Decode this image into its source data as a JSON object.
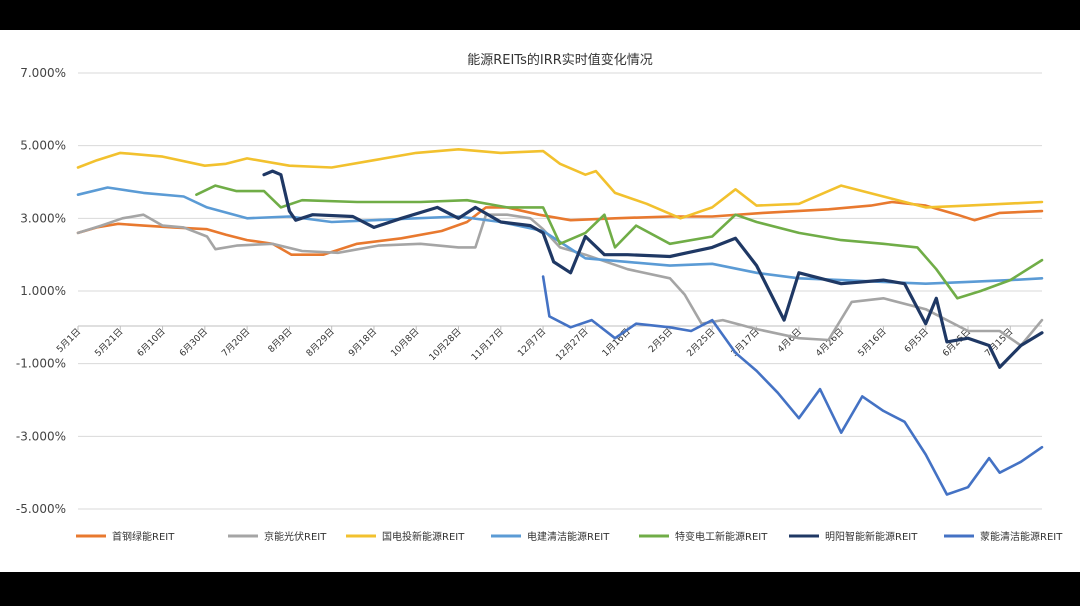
{
  "chart_data": {
    "type": "line",
    "title": "能源REITs的IRR实时值变化情况",
    "ylim": [
      -5.0,
      7.0
    ],
    "yticks": [
      {
        "value": 7,
        "label": "7.000%"
      },
      {
        "value": 5,
        "label": "5.000%"
      },
      {
        "value": 3,
        "label": "3.000%"
      },
      {
        "value": 1,
        "label": "1.000%"
      },
      {
        "value": -1,
        "label": "-1.000%"
      },
      {
        "value": -3,
        "label": "-3.000%"
      },
      {
        "value": -5,
        "label": "-5.000%"
      }
    ],
    "xlim": [
      "2023-05-01",
      "2024-07-30"
    ],
    "xtick_labels": [
      {
        "date": "2023-05-01",
        "label": "5月1日"
      },
      {
        "date": "2023-05-21",
        "label": "5月21日"
      },
      {
        "date": "2023-06-10",
        "label": "6月10日"
      },
      {
        "date": "2023-06-30",
        "label": "6月30日"
      },
      {
        "date": "2023-07-20",
        "label": "7月20日"
      },
      {
        "date": "2023-08-09",
        "label": "8月9日"
      },
      {
        "date": "2023-08-29",
        "label": "8月29日"
      },
      {
        "date": "2023-09-18",
        "label": "9月18日"
      },
      {
        "date": "2023-10-08",
        "label": "10月8日"
      },
      {
        "date": "2023-10-28",
        "label": "10月28日"
      },
      {
        "date": "2023-11-17",
        "label": "11月17日"
      },
      {
        "date": "2023-12-07",
        "label": "12月7日"
      },
      {
        "date": "2023-12-27",
        "label": "12月27日"
      },
      {
        "date": "2024-01-16",
        "label": "1月16日"
      },
      {
        "date": "2024-02-05",
        "label": "2月5日"
      },
      {
        "date": "2024-02-25",
        "label": "2月25日"
      },
      {
        "date": "2024-03-17",
        "label": "3月17日"
      },
      {
        "date": "2024-04-06",
        "label": "4月6日"
      },
      {
        "date": "2024-04-26",
        "label": "4月26日"
      },
      {
        "date": "2024-05-16",
        "label": "5月16日"
      },
      {
        "date": "2024-06-05",
        "label": "6月5日"
      },
      {
        "date": "2024-06-25",
        "label": "6月25日"
      },
      {
        "date": "2024-07-15",
        "label": "7月15日"
      }
    ],
    "grid": true,
    "legend_position": "bottom",
    "series": [
      {
        "name": "首钢绿能REIT",
        "color": "#E8792F",
        "points": [
          [
            "2023-05-01",
            2.6
          ],
          [
            "2023-05-10",
            2.75
          ],
          [
            "2023-05-20",
            2.85
          ],
          [
            "2023-06-01",
            2.8
          ],
          [
            "2023-06-15",
            2.75
          ],
          [
            "2023-07-01",
            2.7
          ],
          [
            "2023-07-10",
            2.55
          ],
          [
            "2023-07-20",
            2.4
          ],
          [
            "2023-08-01",
            2.3
          ],
          [
            "2023-08-10",
            2.0
          ],
          [
            "2023-08-25",
            2.0
          ],
          [
            "2023-09-10",
            2.3
          ],
          [
            "2023-10-01",
            2.45
          ],
          [
            "2023-10-20",
            2.65
          ],
          [
            "2023-11-01",
            2.9
          ],
          [
            "2023-11-10",
            3.3
          ],
          [
            "2023-11-20",
            3.3
          ],
          [
            "2023-12-05",
            3.1
          ],
          [
            "2023-12-20",
            2.95
          ],
          [
            "2024-01-10",
            3.0
          ],
          [
            "2024-02-05",
            3.05
          ],
          [
            "2024-02-25",
            3.05
          ],
          [
            "2024-03-20",
            3.15
          ],
          [
            "2024-04-20",
            3.25
          ],
          [
            "2024-05-10",
            3.35
          ],
          [
            "2024-05-20",
            3.45
          ],
          [
            "2024-06-05",
            3.35
          ],
          [
            "2024-06-20",
            3.1
          ],
          [
            "2024-06-28",
            2.95
          ],
          [
            "2024-07-10",
            3.15
          ],
          [
            "2024-07-30",
            3.2
          ]
        ]
      },
      {
        "name": "京能光伏REIT",
        "color": "#A5A5A5",
        "points": [
          [
            "2023-05-01",
            2.6
          ],
          [
            "2023-05-12",
            2.8
          ],
          [
            "2023-05-22",
            3.0
          ],
          [
            "2023-06-01",
            3.1
          ],
          [
            "2023-06-10",
            2.8
          ],
          [
            "2023-06-20",
            2.75
          ],
          [
            "2023-07-01",
            2.5
          ],
          [
            "2023-07-05",
            2.15
          ],
          [
            "2023-07-15",
            2.25
          ],
          [
            "2023-08-01",
            2.3
          ],
          [
            "2023-08-15",
            2.1
          ],
          [
            "2023-09-01",
            2.05
          ],
          [
            "2023-09-20",
            2.25
          ],
          [
            "2023-10-10",
            2.3
          ],
          [
            "2023-10-28",
            2.2
          ],
          [
            "2023-11-05",
            2.2
          ],
          [
            "2023-11-10",
            3.1
          ],
          [
            "2023-11-20",
            3.1
          ],
          [
            "2023-12-01",
            3.0
          ],
          [
            "2023-12-07",
            2.7
          ],
          [
            "2023-12-15",
            2.2
          ],
          [
            "2023-12-27",
            2.0
          ],
          [
            "2024-01-16",
            1.6
          ],
          [
            "2024-02-05",
            1.35
          ],
          [
            "2024-02-12",
            0.9
          ],
          [
            "2024-02-20",
            0.1
          ],
          [
            "2024-03-01",
            0.2
          ],
          [
            "2024-03-17",
            -0.05
          ],
          [
            "2024-04-06",
            -0.3
          ],
          [
            "2024-04-20",
            -0.35
          ],
          [
            "2024-05-01",
            0.7
          ],
          [
            "2024-05-16",
            0.8
          ],
          [
            "2024-06-05",
            0.5
          ],
          [
            "2024-06-25",
            -0.1
          ],
          [
            "2024-07-10",
            -0.1
          ],
          [
            "2024-07-20",
            -0.5
          ],
          [
            "2024-07-30",
            0.2
          ]
        ]
      },
      {
        "name": "国电投新能源REIT",
        "color": "#F2C12E",
        "points": [
          [
            "2023-05-01",
            4.4
          ],
          [
            "2023-05-10",
            4.6
          ],
          [
            "2023-05-21",
            4.8
          ],
          [
            "2023-06-10",
            4.7
          ],
          [
            "2023-06-30",
            4.45
          ],
          [
            "2023-07-10",
            4.5
          ],
          [
            "2023-07-20",
            4.65
          ],
          [
            "2023-08-09",
            4.45
          ],
          [
            "2023-08-29",
            4.4
          ],
          [
            "2023-09-18",
            4.6
          ],
          [
            "2023-10-08",
            4.8
          ],
          [
            "2023-10-28",
            4.9
          ],
          [
            "2023-11-17",
            4.8
          ],
          [
            "2023-12-07",
            4.85
          ],
          [
            "2023-12-15",
            4.5
          ],
          [
            "2023-12-27",
            4.2
          ],
          [
            "2024-01-01",
            4.3
          ],
          [
            "2024-01-10",
            3.7
          ],
          [
            "2024-01-25",
            3.4
          ],
          [
            "2024-02-10",
            3.0
          ],
          [
            "2024-02-25",
            3.3
          ],
          [
            "2024-03-07",
            3.8
          ],
          [
            "2024-03-17",
            3.35
          ],
          [
            "2024-04-06",
            3.4
          ],
          [
            "2024-04-26",
            3.9
          ],
          [
            "2024-05-16",
            3.6
          ],
          [
            "2024-06-05",
            3.3
          ],
          [
            "2024-06-25",
            3.35
          ],
          [
            "2024-07-30",
            3.45
          ]
        ]
      },
      {
        "name": "电建清洁能源REIT",
        "color": "#5B9BD5",
        "points": [
          [
            "2023-05-01",
            3.65
          ],
          [
            "2023-05-15",
            3.85
          ],
          [
            "2023-06-01",
            3.7
          ],
          [
            "2023-06-20",
            3.6
          ],
          [
            "2023-07-01",
            3.3
          ],
          [
            "2023-07-20",
            3.0
          ],
          [
            "2023-08-09",
            3.05
          ],
          [
            "2023-08-29",
            2.9
          ],
          [
            "2023-09-18",
            2.95
          ],
          [
            "2023-10-08",
            3.0
          ],
          [
            "2023-10-28",
            3.05
          ],
          [
            "2023-11-17",
            2.9
          ],
          [
            "2023-12-07",
            2.65
          ],
          [
            "2023-12-27",
            1.9
          ],
          [
            "2024-01-16",
            1.8
          ],
          [
            "2024-02-05",
            1.7
          ],
          [
            "2024-02-25",
            1.75
          ],
          [
            "2024-03-17",
            1.5
          ],
          [
            "2024-04-06",
            1.35
          ],
          [
            "2024-04-26",
            1.3
          ],
          [
            "2024-05-16",
            1.25
          ],
          [
            "2024-06-05",
            1.2
          ],
          [
            "2024-06-25",
            1.25
          ],
          [
            "2024-07-15",
            1.3
          ],
          [
            "2024-07-30",
            1.35
          ]
        ]
      },
      {
        "name": "特变电工新能源REIT",
        "color": "#70AD47",
        "points": [
          [
            "2023-06-26",
            3.65
          ],
          [
            "2023-07-05",
            3.9
          ],
          [
            "2023-07-15",
            3.75
          ],
          [
            "2023-07-28",
            3.75
          ],
          [
            "2023-08-05",
            3.3
          ],
          [
            "2023-08-15",
            3.5
          ],
          [
            "2023-09-10",
            3.45
          ],
          [
            "2023-10-10",
            3.45
          ],
          [
            "2023-11-01",
            3.5
          ],
          [
            "2023-11-20",
            3.3
          ],
          [
            "2023-12-07",
            3.3
          ],
          [
            "2023-12-15",
            2.3
          ],
          [
            "2023-12-27",
            2.6
          ],
          [
            "2024-01-05",
            3.1
          ],
          [
            "2024-01-10",
            2.2
          ],
          [
            "2024-01-20",
            2.8
          ],
          [
            "2024-02-05",
            2.3
          ],
          [
            "2024-02-25",
            2.5
          ],
          [
            "2024-03-07",
            3.1
          ],
          [
            "2024-03-17",
            2.9
          ],
          [
            "2024-04-06",
            2.6
          ],
          [
            "2024-04-26",
            2.4
          ],
          [
            "2024-05-16",
            2.3
          ],
          [
            "2024-06-01",
            2.2
          ],
          [
            "2024-06-10",
            1.6
          ],
          [
            "2024-06-20",
            0.8
          ],
          [
            "2024-07-01",
            1.0
          ],
          [
            "2024-07-15",
            1.3
          ],
          [
            "2024-07-30",
            1.85
          ]
        ]
      },
      {
        "name": "明阳智能新能源REIT",
        "color": "#1F3864",
        "points": [
          [
            "2023-07-28",
            4.2
          ],
          [
            "2023-08-01",
            4.3
          ],
          [
            "2023-08-05",
            4.2
          ],
          [
            "2023-08-09",
            3.2
          ],
          [
            "2023-08-12",
            2.95
          ],
          [
            "2023-08-20",
            3.1
          ],
          [
            "2023-09-08",
            3.05
          ],
          [
            "2023-09-18",
            2.75
          ],
          [
            "2023-10-01",
            3.0
          ],
          [
            "2023-10-18",
            3.3
          ],
          [
            "2023-10-28",
            3.0
          ],
          [
            "2023-11-05",
            3.3
          ],
          [
            "2023-11-17",
            2.9
          ],
          [
            "2023-12-01",
            2.8
          ],
          [
            "2023-12-07",
            2.6
          ],
          [
            "2023-12-12",
            1.8
          ],
          [
            "2023-12-20",
            1.5
          ],
          [
            "2023-12-27",
            2.5
          ],
          [
            "2024-01-05",
            2.0
          ],
          [
            "2024-01-16",
            2.0
          ],
          [
            "2024-02-05",
            1.95
          ],
          [
            "2024-02-25",
            2.2
          ],
          [
            "2024-03-07",
            2.45
          ],
          [
            "2024-03-17",
            1.7
          ],
          [
            "2024-03-30",
            0.2
          ],
          [
            "2024-04-06",
            1.5
          ],
          [
            "2024-04-26",
            1.2
          ],
          [
            "2024-05-16",
            1.3
          ],
          [
            "2024-05-26",
            1.2
          ],
          [
            "2024-06-05",
            0.1
          ],
          [
            "2024-06-10",
            0.8
          ],
          [
            "2024-06-15",
            -0.4
          ],
          [
            "2024-06-25",
            -0.3
          ],
          [
            "2024-07-05",
            -0.5
          ],
          [
            "2024-07-10",
            -1.1
          ],
          [
            "2024-07-20",
            -0.5
          ],
          [
            "2024-07-30",
            -0.15
          ]
        ]
      },
      {
        "name": "蒙能清洁能源REIT",
        "color": "#4472C4",
        "points": [
          [
            "2023-12-07",
            1.4
          ],
          [
            "2023-12-10",
            0.3
          ],
          [
            "2023-12-20",
            0.0
          ],
          [
            "2023-12-30",
            0.2
          ],
          [
            "2024-01-10",
            -0.3
          ],
          [
            "2024-01-20",
            0.1
          ],
          [
            "2024-02-05",
            0.0
          ],
          [
            "2024-02-15",
            -0.1
          ],
          [
            "2024-02-25",
            0.2
          ],
          [
            "2024-03-07",
            -0.7
          ],
          [
            "2024-03-17",
            -1.2
          ],
          [
            "2024-03-27",
            -1.8
          ],
          [
            "2024-04-06",
            -2.5
          ],
          [
            "2024-04-16",
            -1.7
          ],
          [
            "2024-04-26",
            -2.9
          ],
          [
            "2024-05-06",
            -1.9
          ],
          [
            "2024-05-16",
            -2.3
          ],
          [
            "2024-05-26",
            -2.6
          ],
          [
            "2024-06-05",
            -3.5
          ],
          [
            "2024-06-15",
            -4.6
          ],
          [
            "2024-06-25",
            -4.4
          ],
          [
            "2024-07-05",
            -3.6
          ],
          [
            "2024-07-10",
            -4.0
          ],
          [
            "2024-07-20",
            -3.7
          ],
          [
            "2024-07-30",
            -3.3
          ]
        ]
      }
    ]
  }
}
